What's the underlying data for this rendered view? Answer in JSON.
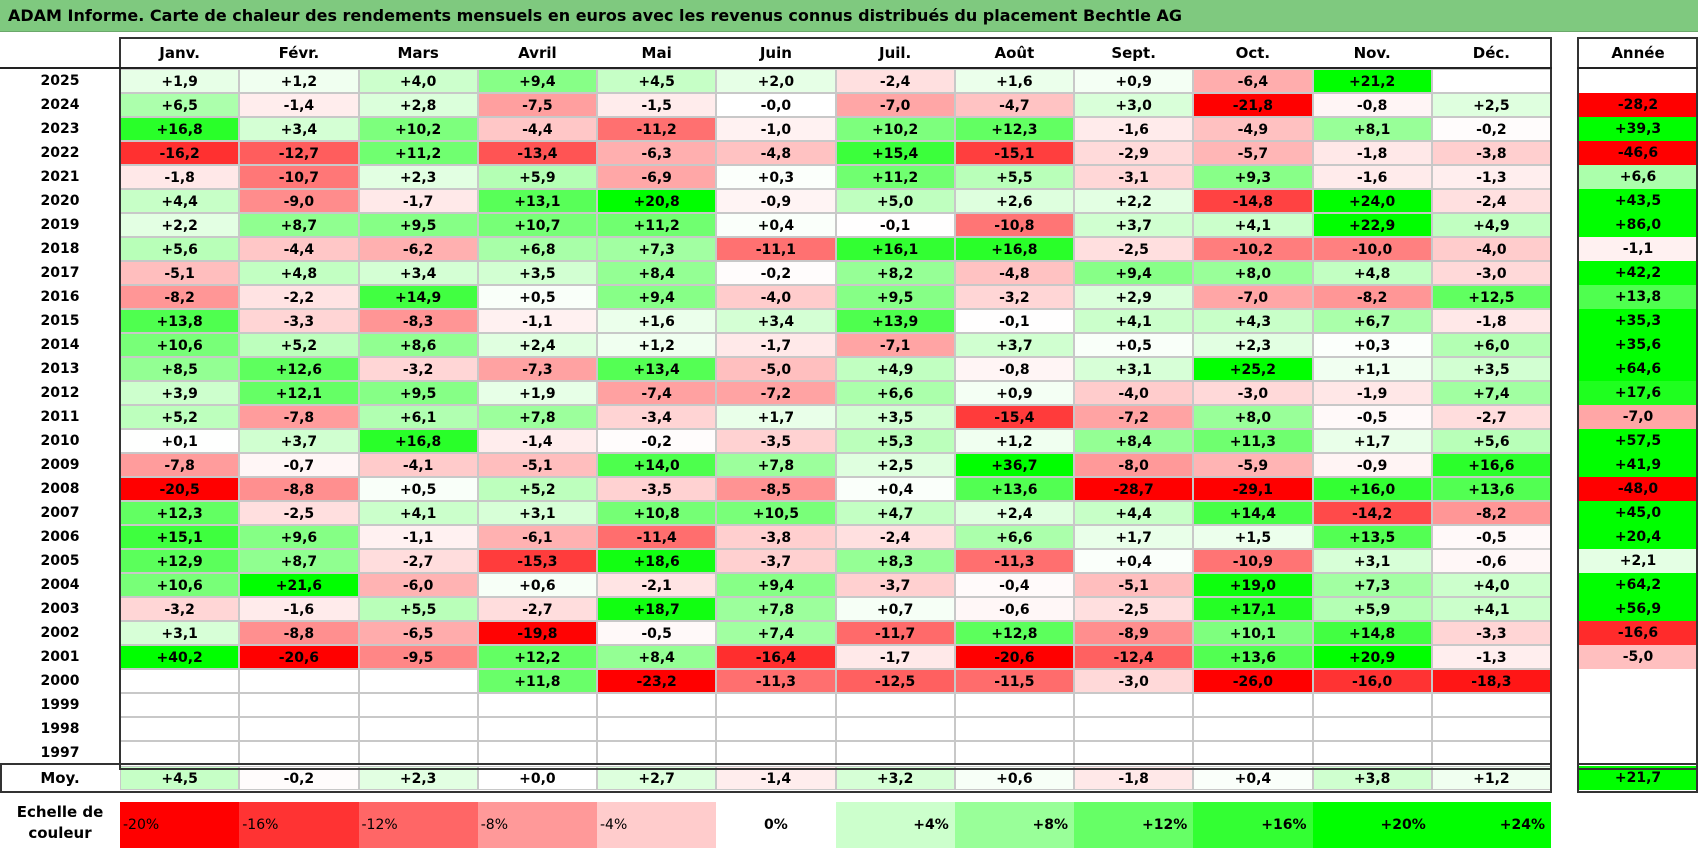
{
  "title": "ADAM Informe. Carte de chaleur des rendements mensuels en euros avec les revenus connus distribués du placement Bechtle AG",
  "chart_data": {
    "type": "heatmap",
    "months": [
      "Janv.",
      "Févr.",
      "Mars",
      "Avril",
      "Mai",
      "Juin",
      "Juil.",
      "Août",
      "Sept.",
      "Oct.",
      "Nov.",
      "Déc."
    ],
    "annual_label": "Année",
    "rows": [
      {
        "year": "2025",
        "values": [
          "+1,9",
          "+1,2",
          "+4,0",
          "+9,4",
          "+4,5",
          "+2,0",
          "-2,4",
          "+1,6",
          "+0,9",
          "-6,4",
          "+21,2",
          ""
        ],
        "annual": ""
      },
      {
        "year": "2024",
        "values": [
          "+6,5",
          "-1,4",
          "+2,8",
          "-7,5",
          "-1,5",
          "-0,0",
          "-7,0",
          "-4,7",
          "+3,0",
          "-21,8",
          "-0,8",
          "+2,5"
        ],
        "annual": "-28,2"
      },
      {
        "year": "2023",
        "values": [
          "+16,8",
          "+3,4",
          "+10,2",
          "-4,4",
          "-11,2",
          "-1,0",
          "+10,2",
          "+12,3",
          "-1,6",
          "-4,9",
          "+8,1",
          "-0,2"
        ],
        "annual": "+39,3"
      },
      {
        "year": "2022",
        "values": [
          "-16,2",
          "-12,7",
          "+11,2",
          "-13,4",
          "-6,3",
          "-4,8",
          "+15,4",
          "-15,1",
          "-2,9",
          "-5,7",
          "-1,8",
          "-3,8"
        ],
        "annual": "-46,6"
      },
      {
        "year": "2021",
        "values": [
          "-1,8",
          "-10,7",
          "+2,3",
          "+5,9",
          "-6,9",
          "+0,3",
          "+11,2",
          "+5,5",
          "-3,1",
          "+9,3",
          "-1,6",
          "-1,3"
        ],
        "annual": "+6,6"
      },
      {
        "year": "2020",
        "values": [
          "+4,4",
          "-9,0",
          "-1,7",
          "+13,1",
          "+20,8",
          "-0,9",
          "+5,0",
          "+2,6",
          "+2,2",
          "-14,8",
          "+24,0",
          "-2,4"
        ],
        "annual": "+43,5"
      },
      {
        "year": "2019",
        "values": [
          "+2,2",
          "+8,7",
          "+9,5",
          "+10,7",
          "+11,2",
          "+0,4",
          "-0,1",
          "-10,8",
          "+3,7",
          "+4,1",
          "+22,9",
          "+4,9"
        ],
        "annual": "+86,0"
      },
      {
        "year": "2018",
        "values": [
          "+5,6",
          "-4,4",
          "-6,2",
          "+6,8",
          "+7,3",
          "-11,1",
          "+16,1",
          "+16,8",
          "-2,5",
          "-10,2",
          "-10,0",
          "-4,0"
        ],
        "annual": "-1,1"
      },
      {
        "year": "2017",
        "values": [
          "-5,1",
          "+4,8",
          "+3,4",
          "+3,5",
          "+8,4",
          "-0,2",
          "+8,2",
          "-4,8",
          "+9,4",
          "+8,0",
          "+4,8",
          "-3,0"
        ],
        "annual": "+42,2"
      },
      {
        "year": "2016",
        "values": [
          "-8,2",
          "-2,2",
          "+14,9",
          "+0,5",
          "+9,4",
          "-4,0",
          "+9,5",
          "-3,2",
          "+2,9",
          "-7,0",
          "-8,2",
          "+12,5"
        ],
        "annual": "+13,8"
      },
      {
        "year": "2015",
        "values": [
          "+13,8",
          "-3,3",
          "-8,3",
          "-1,1",
          "+1,6",
          "+3,4",
          "+13,9",
          "-0,1",
          "+4,1",
          "+4,3",
          "+6,7",
          "-1,8"
        ],
        "annual": "+35,3"
      },
      {
        "year": "2014",
        "values": [
          "+10,6",
          "+5,2",
          "+8,6",
          "+2,4",
          "+1,2",
          "-1,7",
          "-7,1",
          "+3,7",
          "+0,5",
          "+2,3",
          "+0,3",
          "+6,0"
        ],
        "annual": "+35,6"
      },
      {
        "year": "2013",
        "values": [
          "+8,5",
          "+12,6",
          "-3,2",
          "-7,3",
          "+13,4",
          "-5,0",
          "+4,9",
          "-0,8",
          "+3,1",
          "+25,2",
          "+1,1",
          "+3,5"
        ],
        "annual": "+64,6"
      },
      {
        "year": "2012",
        "values": [
          "+3,9",
          "+12,1",
          "+9,5",
          "+1,9",
          "-7,4",
          "-7,2",
          "+6,6",
          "+0,9",
          "-4,0",
          "-3,0",
          "-1,9",
          "+7,4"
        ],
        "annual": "+17,6"
      },
      {
        "year": "2011",
        "values": [
          "+5,2",
          "-7,8",
          "+6,1",
          "+7,8",
          "-3,4",
          "+1,7",
          "+3,5",
          "-15,4",
          "-7,2",
          "+8,0",
          "-0,5",
          "-2,7"
        ],
        "annual": "-7,0"
      },
      {
        "year": "2010",
        "values": [
          "+0,1",
          "+3,7",
          "+16,8",
          "-1,4",
          "-0,2",
          "-3,5",
          "+5,3",
          "+1,2",
          "+8,4",
          "+11,3",
          "+1,7",
          "+5,6"
        ],
        "annual": "+57,5"
      },
      {
        "year": "2009",
        "values": [
          "-7,8",
          "-0,7",
          "-4,1",
          "-5,1",
          "+14,0",
          "+7,8",
          "+2,5",
          "+36,7",
          "-8,0",
          "-5,9",
          "-0,9",
          "+16,6"
        ],
        "annual": "+41,9"
      },
      {
        "year": "2008",
        "values": [
          "-20,5",
          "-8,8",
          "+0,5",
          "+5,2",
          "-3,5",
          "-8,5",
          "+0,4",
          "+13,6",
          "-28,7",
          "-29,1",
          "+16,0",
          "+13,6"
        ],
        "annual": "-48,0"
      },
      {
        "year": "2007",
        "values": [
          "+12,3",
          "-2,5",
          "+4,1",
          "+3,1",
          "+10,8",
          "+10,5",
          "+4,7",
          "+2,4",
          "+4,4",
          "+14,4",
          "-14,2",
          "-8,2"
        ],
        "annual": "+45,0"
      },
      {
        "year": "2006",
        "values": [
          "+15,1",
          "+9,6",
          "-1,1",
          "-6,1",
          "-11,4",
          "-3,8",
          "-2,4",
          "+6,6",
          "+1,7",
          "+1,5",
          "+13,5",
          "-0,5"
        ],
        "annual": "+20,4"
      },
      {
        "year": "2005",
        "values": [
          "+12,9",
          "+8,7",
          "-2,7",
          "-15,3",
          "+18,6",
          "-3,7",
          "+8,3",
          "-11,3",
          "+0,4",
          "-10,9",
          "+3,1",
          "-0,6"
        ],
        "annual": "+2,1"
      },
      {
        "year": "2004",
        "values": [
          "+10,6",
          "+21,6",
          "-6,0",
          "+0,6",
          "-2,1",
          "+9,4",
          "-3,7",
          "-0,4",
          "-5,1",
          "+19,0",
          "+7,3",
          "+4,0"
        ],
        "annual": "+64,2"
      },
      {
        "year": "2003",
        "values": [
          "-3,2",
          "-1,6",
          "+5,5",
          "-2,7",
          "+18,7",
          "+7,8",
          "+0,7",
          "-0,6",
          "-2,5",
          "+17,1",
          "+5,9",
          "+4,1"
        ],
        "annual": "+56,9"
      },
      {
        "year": "2002",
        "values": [
          "+3,1",
          "-8,8",
          "-6,5",
          "-19,8",
          "-0,5",
          "+7,4",
          "-11,7",
          "+12,8",
          "-8,9",
          "+10,1",
          "+14,8",
          "-3,3"
        ],
        "annual": "-16,6"
      },
      {
        "year": "2001",
        "values": [
          "+40,2",
          "-20,6",
          "-9,5",
          "+12,2",
          "+8,4",
          "-16,4",
          "-1,7",
          "-20,6",
          "-12,4",
          "+13,6",
          "+20,9",
          "-1,3"
        ],
        "annual": "-5,0"
      },
      {
        "year": "2000",
        "values": [
          "",
          "",
          "",
          "+11,8",
          "-23,2",
          "-11,3",
          "-12,5",
          "-11,5",
          "-3,0",
          "-26,0",
          "-16,0",
          "-18,3"
        ],
        "annual": ""
      },
      {
        "year": "1999",
        "values": [
          "",
          "",
          "",
          "",
          "",
          "",
          "",
          "",
          "",
          "",
          "",
          ""
        ],
        "annual": ""
      },
      {
        "year": "1998",
        "values": [
          "",
          "",
          "",
          "",
          "",
          "",
          "",
          "",
          "",
          "",
          "",
          ""
        ],
        "annual": ""
      },
      {
        "year": "1997",
        "values": [
          "",
          "",
          "",
          "",
          "",
          "",
          "",
          "",
          "",
          "",
          "",
          ""
        ],
        "annual": ""
      }
    ],
    "average": {
      "label": "Moy.",
      "values": [
        "+4,5",
        "-0,2",
        "+2,3",
        "+0,0",
        "+2,7",
        "-1,4",
        "+3,2",
        "+0,6",
        "-1,8",
        "+0,4",
        "+3,8",
        "+1,2"
      ],
      "annual": "+21,7"
    },
    "color_scale": {
      "label_line1": "Echelle de",
      "label_line2": "couleur",
      "steps": [
        {
          "label": "-20%",
          "value": -20
        },
        {
          "label": "-16%",
          "value": -16
        },
        {
          "label": "-12%",
          "value": -12
        },
        {
          "label": "-8%",
          "value": -8
        },
        {
          "label": "-4%",
          "value": -4
        },
        {
          "label": "0%",
          "value": 0
        },
        {
          "label": "+4%",
          "value": 4
        },
        {
          "label": "+8%",
          "value": 8
        },
        {
          "label": "+12%",
          "value": 12
        },
        {
          "label": "+16%",
          "value": 16
        },
        {
          "label": "+20%",
          "value": 20
        },
        {
          "label": "+24%",
          "value": 24
        }
      ]
    },
    "colors": {
      "negative": "#ff0000",
      "neutral": "#ffffff",
      "positive": "#00ff00",
      "title_bar": "#7fc97f"
    }
  }
}
